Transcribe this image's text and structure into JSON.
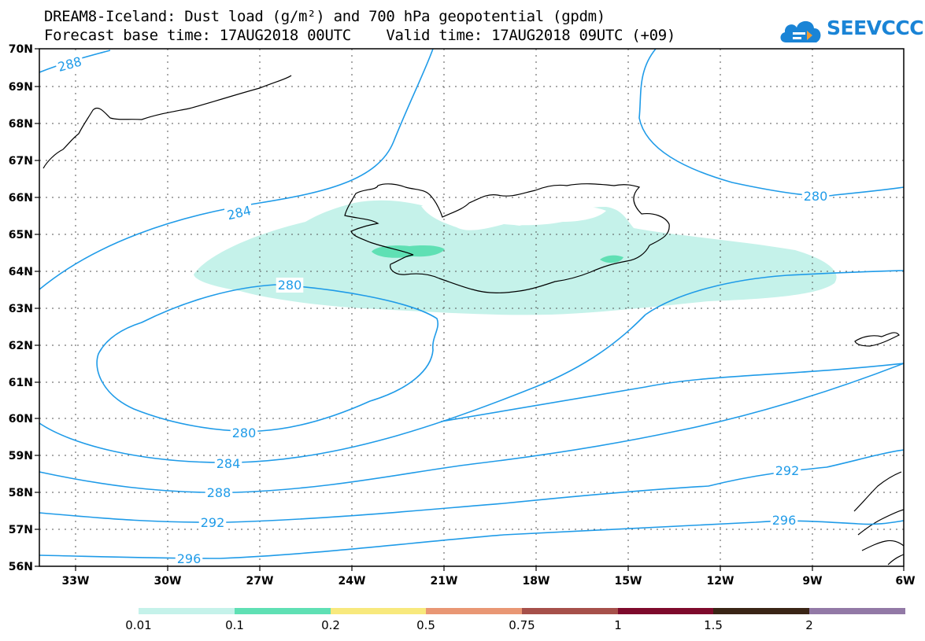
{
  "header": {
    "title_line1": "DREAM8-Iceland: Dust load (g/m²) and 700 hPa geopotential (gpdm)",
    "title_line2": "Forecast base time: 17AUG2018 00UTC    Valid time: 17AUG2018 09UTC (+09)"
  },
  "logo": {
    "text": "SEEVCCC",
    "color": "#1a84d6"
  },
  "map": {
    "lon_labels": [
      "33W",
      "30W",
      "27W",
      "24W",
      "21W",
      "18W",
      "15W",
      "12W",
      "9W",
      "6W"
    ],
    "lat_labels": [
      "70N",
      "69N",
      "68N",
      "67N",
      "66N",
      "65N",
      "64N",
      "63N",
      "62N",
      "61N",
      "60N",
      "59N",
      "58N",
      "57N",
      "56N"
    ],
    "contour_color": "#1f9be8",
    "contour_labels": [
      "288",
      "284",
      "280",
      "280",
      "280",
      "284",
      "288",
      "292",
      "292",
      "296",
      "296"
    ],
    "dust_fill_colors": {
      "low": "#c5f2ea",
      "mid": "#5fe0b4"
    }
  },
  "colorbar": {
    "colors": [
      "#c5f2ea",
      "#5fe0b4",
      "#f8e97d",
      "#e99774",
      "#a6504a",
      "#7e0a2c",
      "#3a2516",
      "#9279a6"
    ],
    "labels": [
      "0.01",
      "0.1",
      "0.2",
      "0.5",
      "0.75",
      "1",
      "1.5",
      "2"
    ]
  }
}
